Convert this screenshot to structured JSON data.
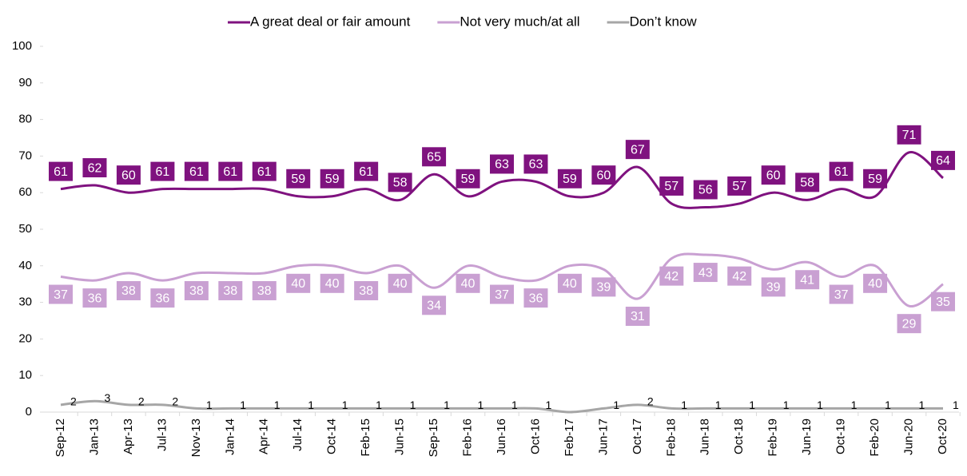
{
  "chart_data": {
    "type": "line",
    "categories": [
      "Sep-12",
      "Jan-13",
      "Apr-13",
      "Jul-13",
      "Nov-13",
      "Jan-14",
      "Apr-14",
      "Jul-14",
      "Oct-14",
      "Feb-15",
      "Jun-15",
      "Sep-15",
      "Feb-16",
      "Jun-16",
      "Oct-16",
      "Feb-17",
      "Jun-17",
      "Oct-17",
      "Feb-18",
      "Jun-18",
      "Oct-18",
      "Feb-19",
      "Jun-19",
      "Oct-19",
      "Feb-20",
      "Jun-20",
      "Oct-20"
    ],
    "series": [
      {
        "name": "A great deal or fair amount",
        "color": "#7f127f",
        "values": [
          61,
          62,
          60,
          61,
          61,
          61,
          61,
          59,
          59,
          61,
          58,
          65,
          59,
          63,
          63,
          59,
          60,
          67,
          57,
          56,
          57,
          60,
          58,
          61,
          59,
          71,
          64
        ]
      },
      {
        "name": "Not very much/at all",
        "color": "#c9a0d2",
        "values": [
          37,
          36,
          38,
          36,
          38,
          38,
          38,
          40,
          40,
          38,
          40,
          34,
          40,
          37,
          36,
          40,
          39,
          31,
          42,
          43,
          42,
          39,
          41,
          37,
          40,
          29,
          35
        ]
      },
      {
        "name": "Don’t know",
        "color": "#a6a6a6",
        "values": [
          2,
          3,
          2,
          2,
          1,
          1,
          1,
          1,
          1,
          1,
          1,
          1,
          1,
          1,
          1,
          0,
          1,
          2,
          1,
          1,
          1,
          1,
          1,
          1,
          1,
          1,
          1
        ],
        "value_labels": [
          "2",
          "3",
          "2",
          "2",
          "1",
          "1",
          "1",
          "1",
          "1",
          "1",
          "1",
          "1",
          "1",
          "1",
          "1",
          null,
          "1",
          "2",
          "1",
          "1",
          "1",
          "1",
          "1",
          "1",
          "1",
          "1",
          "1"
        ]
      }
    ],
    "ylim": [
      0,
      100
    ],
    "yticks": [
      0,
      10,
      20,
      30,
      40,
      50,
      60,
      70,
      80,
      90,
      100
    ],
    "legend": "top"
  }
}
